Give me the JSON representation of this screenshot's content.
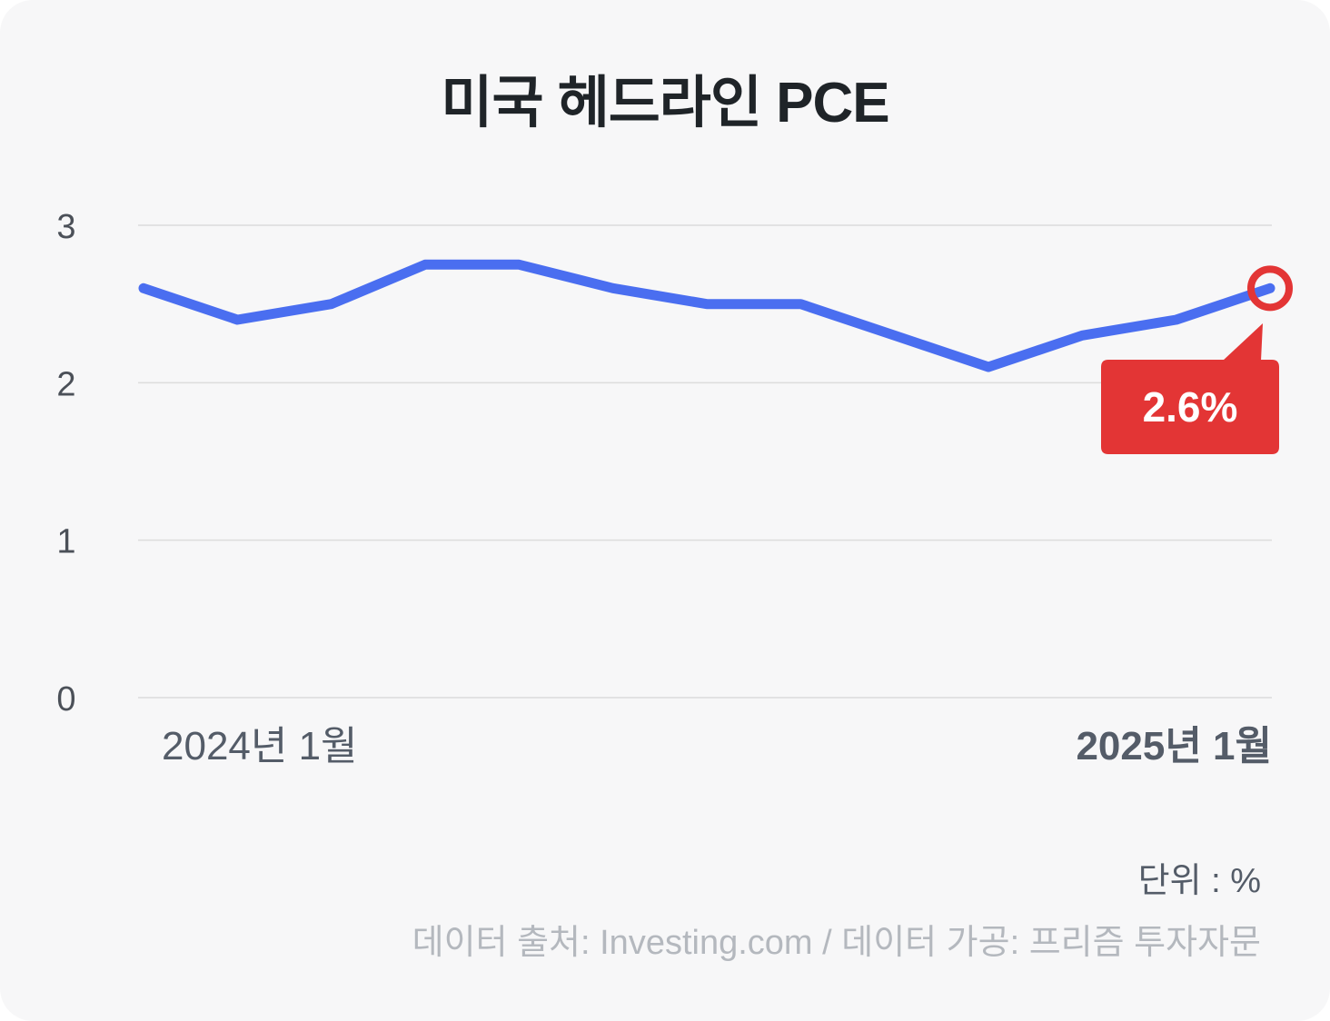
{
  "title": "미국 헤드라인 PCE",
  "unit_label": "단위 : %",
  "source_label": "데이터 출처: Investing.com / 데이터 가공: 프리즘 투자자문",
  "colors": {
    "line": "#4a6ef0",
    "highlight": "#e33535",
    "grid": "#dcdcdc",
    "background": "#f7f7f8"
  },
  "chart_data": {
    "type": "line",
    "x": [
      "2024년 1월",
      "",
      "",
      "",
      "",
      "",
      "",
      "",
      "",
      "",
      "",
      "",
      "2025년 1월"
    ],
    "series": [
      {
        "values": [
          2.6,
          2.4,
          2.5,
          2.75,
          2.75,
          2.6,
          2.5,
          2.5,
          2.3,
          2.1,
          2.3,
          2.4,
          2.6
        ]
      }
    ],
    "ylim": [
      0,
      3
    ],
    "yticks": [
      0,
      1,
      2,
      3
    ],
    "xtick_labels": [
      "2024년 1월",
      "2025년 1월"
    ],
    "grid": true,
    "legend": "none",
    "annotation": {
      "index": 12,
      "text": "2.6%"
    }
  }
}
